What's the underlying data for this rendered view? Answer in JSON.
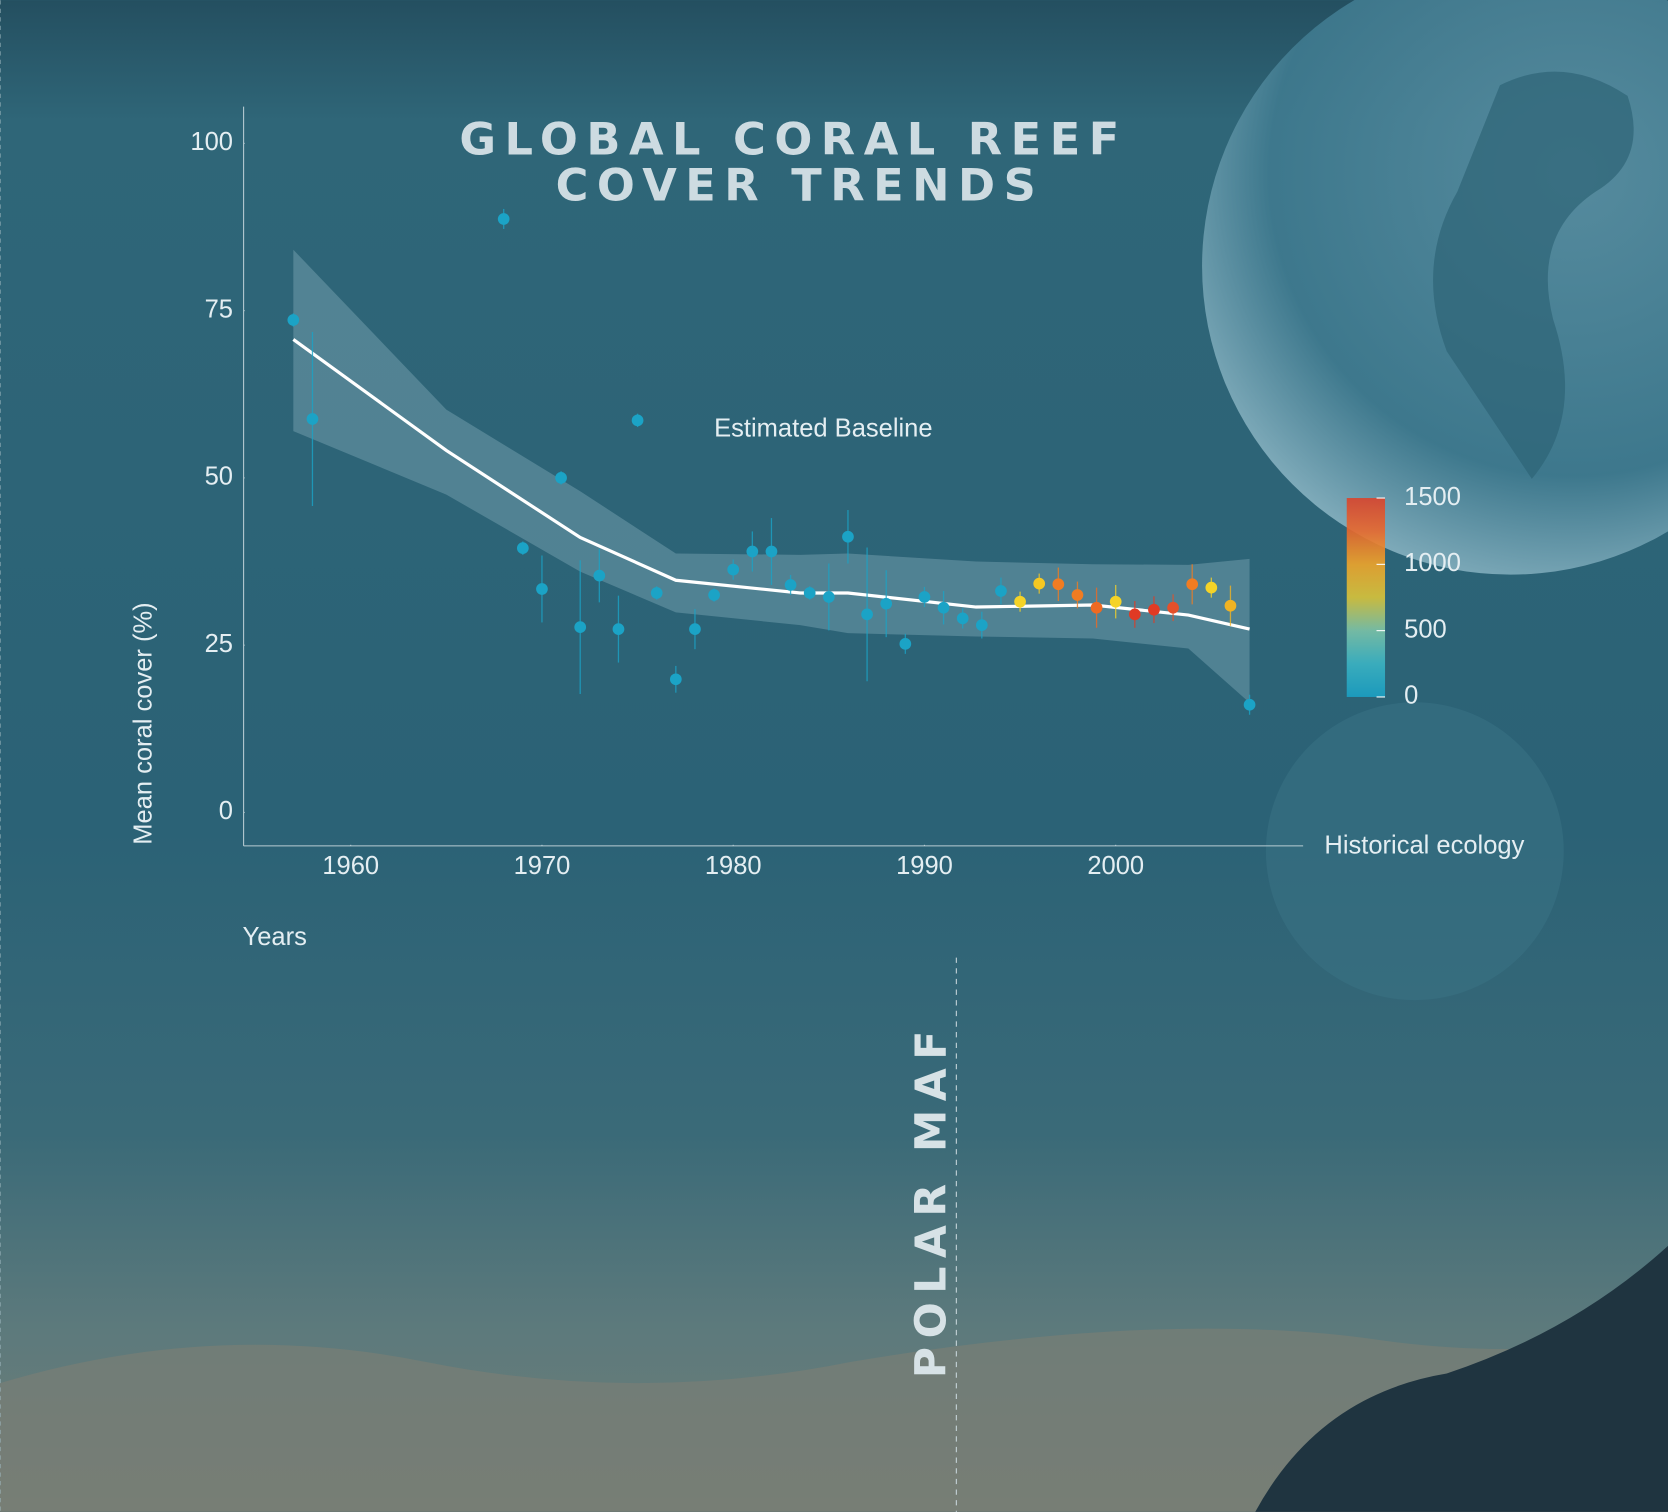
{
  "chart_data": {
    "type": "scatter",
    "title": [
      "GLOBAL CORAL REEF",
      "COVER TRENDS"
    ],
    "x_label": "Years",
    "y_label": "Mean coral cover (%)",
    "annotations": [
      "Estimated Baseline",
      "Historical ecology",
      "POLAR MAF"
    ],
    "x": [
      1957,
      1958,
      1968,
      1969,
      1970,
      1971,
      1972,
      1973,
      1974,
      1975,
      1976,
      1977,
      1978,
      1979,
      1980,
      1981,
      1982,
      1983,
      1984,
      1985,
      1986,
      1987,
      1988,
      1989,
      1990,
      1991,
      1992,
      1993,
      1994,
      1995,
      1996,
      1997,
      1998,
      1999,
      2000,
      2001,
      2002,
      2003,
      2004,
      2005,
      2006,
      2007
    ],
    "values": [
      73.6,
      58.8,
      88.7,
      39.5,
      33.4,
      50,
      27.7,
      35.4,
      27.4,
      58.6,
      32.8,
      19.9,
      27.4,
      32.5,
      36.3,
      39,
      39,
      34,
      32.8,
      32.2,
      41.2,
      29.6,
      31.2,
      25.2,
      32.2,
      30.6,
      29,
      28,
      33.1,
      31.5,
      34.2,
      34.1,
      32.5,
      30.6,
      31.5,
      29.6,
      30.3,
      30.6,
      34.1,
      33.6,
      30.9,
      16.1
    ],
    "errors": [
      1,
      13,
      1.5,
      1,
      5,
      1,
      10,
      4,
      5,
      1,
      1,
      2,
      3,
      1,
      1.5,
      3,
      5,
      1.5,
      1,
      5,
      4,
      10,
      5,
      1.5,
      1.5,
      2.5,
      1.5,
      2,
      2,
      1.5,
      1.5,
      2.5,
      2,
      3,
      2.5,
      2,
      2,
      2,
      3,
      1.5,
      3,
      1.5
    ],
    "colors": [
      "#1ba3c6",
      "#1ba3c6",
      "#1ba3c6",
      "#1ba3c6",
      "#1ba3c6",
      "#1ba3c6",
      "#1ba3c6",
      "#1ba3c6",
      "#1ba3c6",
      "#1ba3c6",
      "#1ba3c6",
      "#1ba3c6",
      "#1ba3c6",
      "#1ba3c6",
      "#1ba3c6",
      "#1ba3c6",
      "#1ba3c6",
      "#1ba3c6",
      "#1ba3c6",
      "#1ba3c6",
      "#1ba3c6",
      "#1ba3c6",
      "#1ba3c6",
      "#1ba3c6",
      "#1ba3c6",
      "#1ba3c6",
      "#1ba3c6",
      "#1ba3c6",
      "#1ba3c6",
      "#f5d327",
      "#f5c823",
      "#f07c22",
      "#f07c22",
      "#ef6a22",
      "#f5d327",
      "#e03a24",
      "#e03a24",
      "#e5502a",
      "#f07c22",
      "#f5d327",
      "#f0b323",
      "#1ba3c6"
    ],
    "trend_x": [
      1957,
      1965,
      1972,
      1977,
      1983.5,
      1986,
      1992.7,
      1998.8,
      2003.8,
      2007
    ],
    "trend": [
      70.7,
      54.1,
      41.1,
      34.7,
      32.8,
      32.8,
      30.7,
      31,
      29.5,
      27.4
    ],
    "band_upper": [
      84.1,
      60.2,
      48,
      38.7,
      38.5,
      38.7,
      37.5,
      37.1,
      37,
      37.9
    ],
    "band_lower": [
      57,
      47.5,
      36,
      29.9,
      28,
      26.8,
      26.3,
      26,
      24.5,
      16.4
    ],
    "trend_color": "#ffffff",
    "xlim": [
      1954.4,
      2009.8
    ],
    "ylim": [
      -5,
      105.5
    ],
    "xticks": [
      1960,
      1970,
      1980,
      1990,
      2000
    ],
    "yticks": [
      0,
      25,
      50,
      75,
      100
    ],
    "colorbar": {
      "lim": [
        0,
        1500
      ],
      "ticks": [
        0,
        500,
        1000,
        1500
      ],
      "colors": [
        "#1aa0c4",
        "#3bb4c4",
        "#7cc3a8",
        "#d9c43a",
        "#f0a52a",
        "#e8682c",
        "#d9432c"
      ]
    }
  }
}
